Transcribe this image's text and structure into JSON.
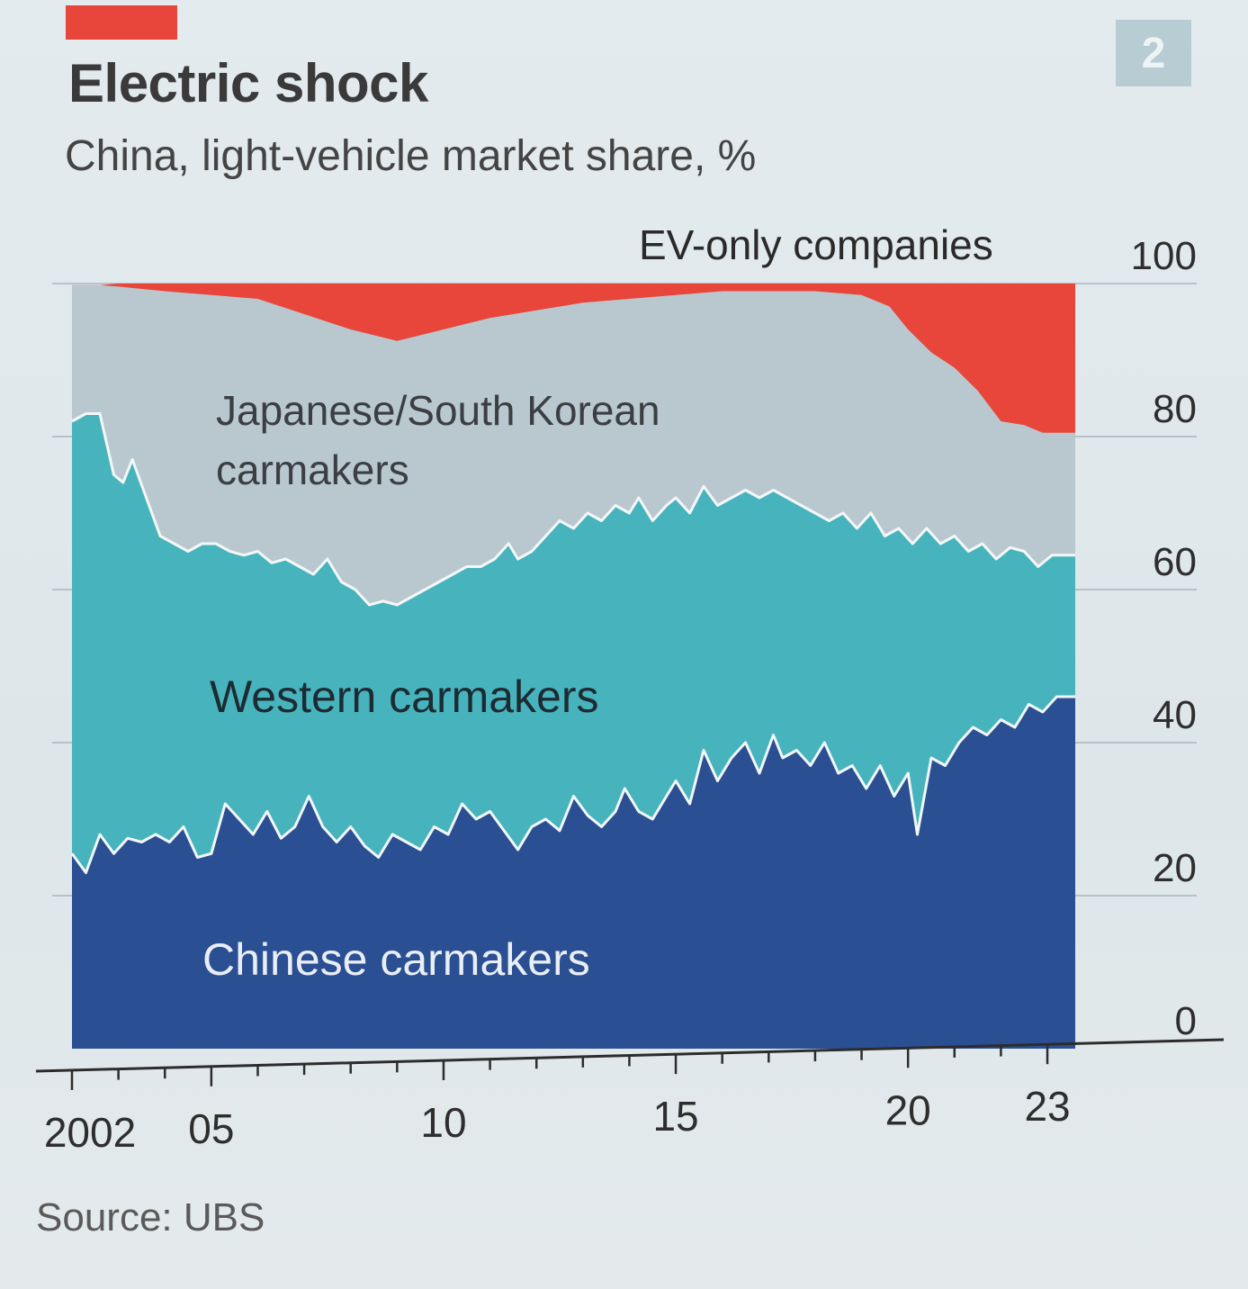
{
  "header": {
    "title": "Electric shock",
    "subtitle": "China, light-vehicle market share, %",
    "chart_number": "2",
    "accent_color": "#e8463a"
  },
  "footer": {
    "source": "Source: UBS"
  },
  "chart_data": {
    "type": "area",
    "stacked": true,
    "title": "Electric shock",
    "subtitle": "China, light-vehicle market share, %",
    "xlabel": "",
    "ylabel": "%",
    "xlim": [
      2002,
      2023.6
    ],
    "ylim": [
      0,
      100
    ],
    "y_ticks": [
      0,
      20,
      40,
      60,
      80,
      100
    ],
    "y_tick_labels": [
      "0",
      "20",
      "40",
      "60",
      "80",
      "100"
    ],
    "x_ticks": [
      2002,
      2005,
      2010,
      2015,
      2020,
      2023
    ],
    "x_tick_labels": [
      "2002",
      "05",
      "10",
      "15",
      "20",
      "23"
    ],
    "grid": true,
    "series": [
      {
        "name": "Chinese carmakers",
        "color": "#2b4f93",
        "values": [
          [
            2002.0,
            25.5
          ],
          [
            2002.3,
            23
          ],
          [
            2002.6,
            28
          ],
          [
            2002.9,
            25.5
          ],
          [
            2003.2,
            27.5
          ],
          [
            2003.5,
            27
          ],
          [
            2003.8,
            28
          ],
          [
            2004.1,
            27
          ],
          [
            2004.4,
            29
          ],
          [
            2004.7,
            25
          ],
          [
            2005.0,
            25.5
          ],
          [
            2005.3,
            32
          ],
          [
            2005.6,
            30
          ],
          [
            2005.9,
            28
          ],
          [
            2006.2,
            31
          ],
          [
            2006.5,
            27.5
          ],
          [
            2006.8,
            29
          ],
          [
            2007.1,
            33
          ],
          [
            2007.4,
            29
          ],
          [
            2007.7,
            27
          ],
          [
            2008.0,
            29
          ],
          [
            2008.3,
            26.5
          ],
          [
            2008.6,
            25
          ],
          [
            2008.9,
            28
          ],
          [
            2009.2,
            27
          ],
          [
            2009.5,
            26
          ],
          [
            2009.8,
            29
          ],
          [
            2010.1,
            28
          ],
          [
            2010.4,
            32
          ],
          [
            2010.7,
            30
          ],
          [
            2011.0,
            31
          ],
          [
            2011.3,
            28.5
          ],
          [
            2011.6,
            26
          ],
          [
            2011.9,
            29
          ],
          [
            2012.2,
            30
          ],
          [
            2012.5,
            28.5
          ],
          [
            2012.8,
            33
          ],
          [
            2013.1,
            30.5
          ],
          [
            2013.4,
            29
          ],
          [
            2013.7,
            31
          ],
          [
            2013.9,
            34
          ],
          [
            2014.2,
            31
          ],
          [
            2014.5,
            30
          ],
          [
            2014.8,
            33
          ],
          [
            2015.0,
            35
          ],
          [
            2015.3,
            32
          ],
          [
            2015.6,
            39
          ],
          [
            2015.9,
            35
          ],
          [
            2016.2,
            38
          ],
          [
            2016.5,
            40
          ],
          [
            2016.8,
            36
          ],
          [
            2017.1,
            41
          ],
          [
            2017.3,
            38
          ],
          [
            2017.6,
            39
          ],
          [
            2017.9,
            37
          ],
          [
            2018.2,
            40
          ],
          [
            2018.5,
            36
          ],
          [
            2018.8,
            37
          ],
          [
            2019.1,
            34
          ],
          [
            2019.4,
            37
          ],
          [
            2019.7,
            33
          ],
          [
            2020.0,
            36
          ],
          [
            2020.2,
            28
          ],
          [
            2020.5,
            38
          ],
          [
            2020.8,
            37
          ],
          [
            2021.1,
            40
          ],
          [
            2021.4,
            42
          ],
          [
            2021.7,
            41
          ],
          [
            2022.0,
            43
          ],
          [
            2022.3,
            42
          ],
          [
            2022.6,
            45
          ],
          [
            2022.9,
            44
          ],
          [
            2023.2,
            46
          ],
          [
            2023.6,
            46
          ]
        ]
      },
      {
        "name": "Western carmakers",
        "color": "#47b4bd",
        "values": [
          [
            2002.0,
            82
          ],
          [
            2002.3,
            83
          ],
          [
            2002.6,
            83
          ],
          [
            2002.9,
            75
          ],
          [
            2003.1,
            74
          ],
          [
            2003.3,
            77
          ],
          [
            2003.6,
            72
          ],
          [
            2003.9,
            67
          ],
          [
            2004.2,
            66
          ],
          [
            2004.5,
            65
          ],
          [
            2004.8,
            66
          ],
          [
            2005.1,
            66
          ],
          [
            2005.4,
            65
          ],
          [
            2005.7,
            64.5
          ],
          [
            2006.0,
            65
          ],
          [
            2006.3,
            63.5
          ],
          [
            2006.6,
            64
          ],
          [
            2006.9,
            63
          ],
          [
            2007.2,
            62
          ],
          [
            2007.5,
            64
          ],
          [
            2007.8,
            61
          ],
          [
            2008.1,
            60
          ],
          [
            2008.4,
            58
          ],
          [
            2008.7,
            58.5
          ],
          [
            2009.0,
            58
          ],
          [
            2009.3,
            59
          ],
          [
            2009.6,
            60
          ],
          [
            2009.9,
            61
          ],
          [
            2010.2,
            62
          ],
          [
            2010.5,
            63
          ],
          [
            2010.8,
            63
          ],
          [
            2011.1,
            64
          ],
          [
            2011.4,
            66
          ],
          [
            2011.6,
            64
          ],
          [
            2011.9,
            65
          ],
          [
            2012.2,
            67
          ],
          [
            2012.5,
            69
          ],
          [
            2012.8,
            68
          ],
          [
            2013.1,
            70
          ],
          [
            2013.4,
            69
          ],
          [
            2013.7,
            71
          ],
          [
            2014.0,
            70
          ],
          [
            2014.2,
            72
          ],
          [
            2014.5,
            69
          ],
          [
            2014.8,
            71
          ],
          [
            2015.0,
            72
          ],
          [
            2015.3,
            70
          ],
          [
            2015.6,
            73.5
          ],
          [
            2015.9,
            71
          ],
          [
            2016.2,
            72
          ],
          [
            2016.5,
            73
          ],
          [
            2016.8,
            72
          ],
          [
            2017.1,
            73
          ],
          [
            2017.4,
            72
          ],
          [
            2017.7,
            71
          ],
          [
            2018.0,
            70
          ],
          [
            2018.3,
            69
          ],
          [
            2018.6,
            70
          ],
          [
            2018.9,
            68
          ],
          [
            2019.2,
            70
          ],
          [
            2019.5,
            67
          ],
          [
            2019.8,
            68
          ],
          [
            2020.1,
            66
          ],
          [
            2020.4,
            68
          ],
          [
            2020.7,
            66
          ],
          [
            2021.0,
            67
          ],
          [
            2021.3,
            65
          ],
          [
            2021.6,
            66
          ],
          [
            2021.9,
            64
          ],
          [
            2022.2,
            65.5
          ],
          [
            2022.5,
            65
          ],
          [
            2022.8,
            63
          ],
          [
            2023.1,
            64.5
          ],
          [
            2023.6,
            64.5
          ]
        ]
      },
      {
        "name": "Japanese/South Korean carmakers",
        "color": "#b9c8cf",
        "values": [
          [
            2002.0,
            99.8
          ],
          [
            2002.3,
            99.8
          ],
          [
            2002.6,
            99.8
          ],
          [
            2003.0,
            99.6
          ],
          [
            2004.0,
            99
          ],
          [
            2005.0,
            98.5
          ],
          [
            2006.0,
            98
          ],
          [
            2007.0,
            96
          ],
          [
            2008.0,
            94
          ],
          [
            2009.0,
            92.5
          ],
          [
            2010.0,
            94
          ],
          [
            2011.0,
            95.5
          ],
          [
            2012.0,
            96.5
          ],
          [
            2013.0,
            97.5
          ],
          [
            2014.0,
            98
          ],
          [
            2015.0,
            98.5
          ],
          [
            2016.0,
            99
          ],
          [
            2017.0,
            99
          ],
          [
            2018.0,
            99
          ],
          [
            2019.0,
            98.5
          ],
          [
            2019.6,
            97
          ],
          [
            2020.0,
            94
          ],
          [
            2020.5,
            91
          ],
          [
            2021.0,
            89
          ],
          [
            2021.5,
            86
          ],
          [
            2022.0,
            82
          ],
          [
            2022.5,
            81.5
          ],
          [
            2022.9,
            80.5
          ],
          [
            2023.1,
            80.5
          ],
          [
            2023.6,
            80.5
          ]
        ]
      },
      {
        "name": "EV-only companies",
        "color": "#e8463a",
        "values": [
          [
            2002.0,
            99.8
          ],
          [
            2002.6,
            99.8
          ],
          [
            2003.0,
            100
          ],
          [
            2023.1,
            100
          ],
          [
            2023.6,
            100
          ]
        ]
      }
    ]
  }
}
